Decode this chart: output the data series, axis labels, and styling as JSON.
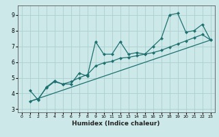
{
  "title": "",
  "xlabel": "Humidex (Indice chaleur)",
  "ylabel": "",
  "bg_color": "#cce8e8",
  "grid_color": "#aacfcf",
  "line_color": "#1e7070",
  "marker_color": "#1e7070",
  "xlim": [
    -0.5,
    23.5
  ],
  "ylim": [
    2.8,
    9.6
  ],
  "yticks": [
    3,
    4,
    5,
    6,
    7,
    8,
    9
  ],
  "xticks": [
    0,
    1,
    2,
    3,
    4,
    5,
    6,
    7,
    8,
    9,
    10,
    11,
    12,
    13,
    14,
    15,
    16,
    17,
    18,
    19,
    20,
    21,
    22,
    23
  ],
  "line1_x": [
    1,
    2,
    3,
    4,
    5,
    6,
    7,
    8,
    9,
    10,
    11,
    12,
    13,
    14,
    15,
    16,
    17,
    18,
    19,
    20,
    21,
    22,
    23
  ],
  "line1_y": [
    4.2,
    3.6,
    4.4,
    4.8,
    4.6,
    4.6,
    5.3,
    5.1,
    7.3,
    6.5,
    6.5,
    7.3,
    6.5,
    6.6,
    6.5,
    7.0,
    7.5,
    9.0,
    9.1,
    7.9,
    8.0,
    8.4,
    7.4
  ],
  "line2_x": [
    1,
    2,
    3,
    4,
    5,
    6,
    7,
    8,
    9,
    10,
    11,
    12,
    13,
    14,
    15,
    16,
    17,
    18,
    19,
    20,
    21,
    22,
    23
  ],
  "line2_y": [
    3.5,
    3.65,
    4.35,
    4.75,
    4.6,
    4.75,
    5.0,
    5.2,
    5.75,
    5.95,
    6.05,
    6.25,
    6.3,
    6.4,
    6.5,
    6.6,
    6.75,
    6.95,
    7.15,
    7.35,
    7.55,
    7.75,
    7.4
  ],
  "line3_x": [
    1,
    23
  ],
  "line3_y": [
    3.5,
    7.4
  ]
}
